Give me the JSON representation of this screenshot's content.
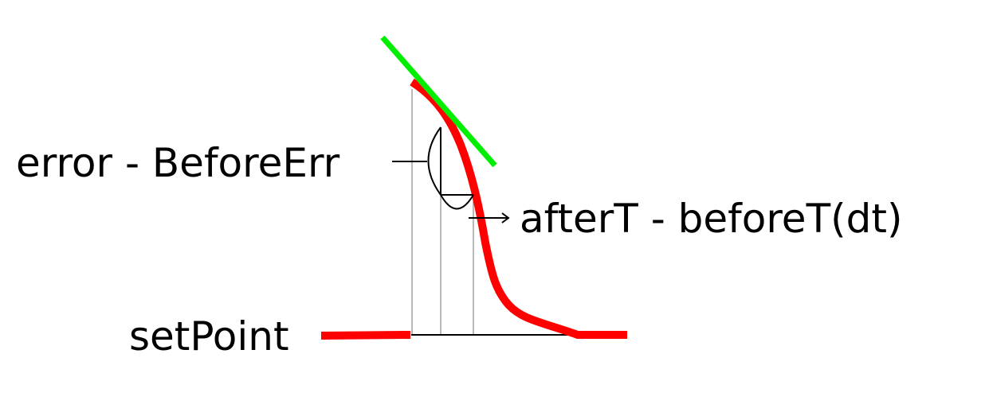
{
  "labels": {
    "error_diff": "error - BeforeErr",
    "time_diff": "afterT - beforeT(dt)",
    "setpoint": "setPoint"
  },
  "colors": {
    "signal_curve": "#ff0000",
    "tangent_line": "#00ee00",
    "annotation": "#000000",
    "guide_lines": "#8a8a8a",
    "background": "#ffffff"
  }
}
